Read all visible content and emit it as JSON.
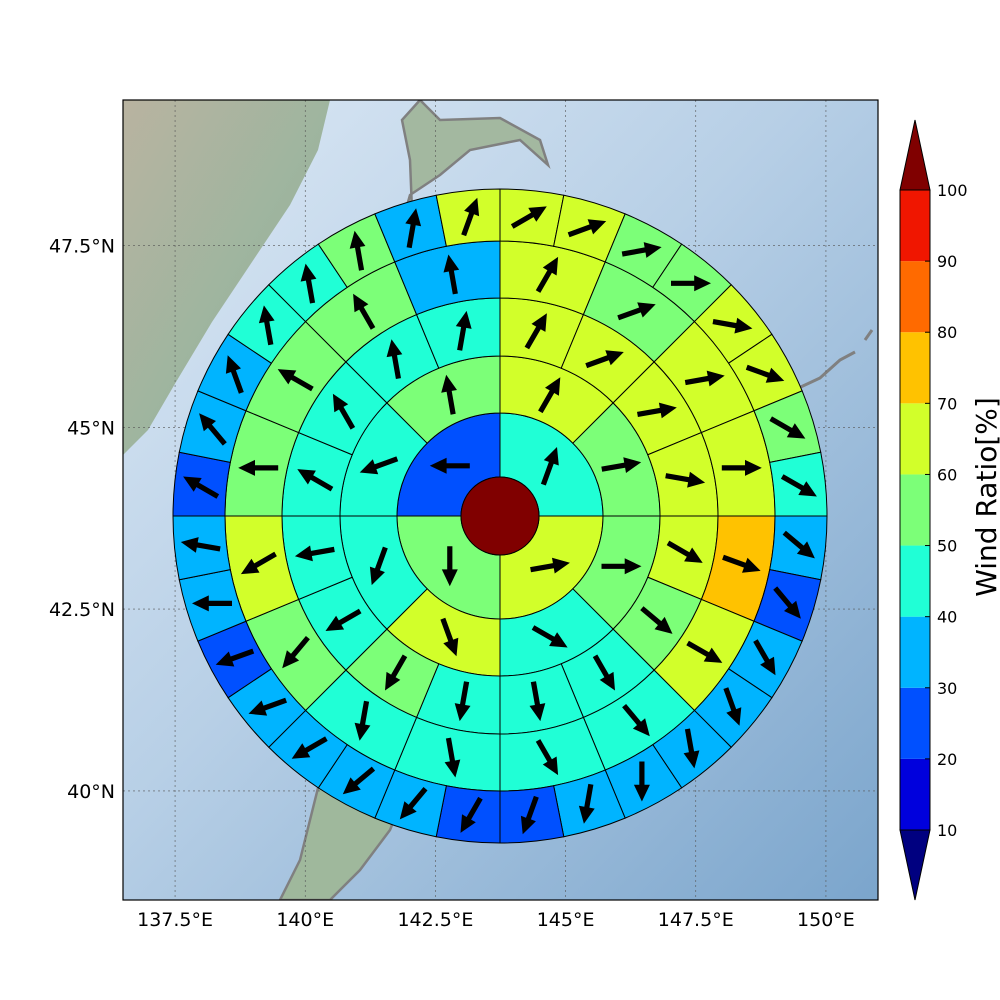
{
  "map": {
    "x_ticks": [
      "137.5°E",
      "140°E",
      "142.5°E",
      "145°E",
      "147.5°E",
      "150°E"
    ],
    "y_ticks": [
      "47.5°N",
      "45°N",
      "42.5°N",
      "40°N"
    ],
    "x_tick_values": [
      137.5,
      140,
      142.5,
      145,
      147.5,
      150
    ],
    "y_tick_values": [
      47.5,
      45,
      42.5,
      40
    ],
    "lon_range": [
      136.5,
      151
    ],
    "lat_range": [
      38.5,
      49.5
    ],
    "gridlines": "dotted",
    "center_value": 100,
    "wind_rose": {
      "ring_sectors": [
        4,
        8,
        16,
        16,
        32
      ],
      "rings": [
        [
          40,
          60,
          50,
          20
        ],
        [
          60,
          50,
          50,
          40,
          60,
          40,
          40,
          50
        ],
        [
          60,
          60,
          60,
          60,
          60,
          50,
          40,
          40,
          40,
          50,
          40,
          40,
          40,
          40,
          40,
          40
        ],
        [
          60,
          50,
          60,
          60,
          70,
          60,
          40,
          40,
          40,
          40,
          50,
          60,
          50,
          50,
          50,
          30
        ],
        [
          60,
          60,
          50,
          50,
          60,
          60,
          50,
          40,
          30,
          20,
          30,
          30,
          30,
          30,
          30,
          20,
          20,
          30,
          30,
          30,
          30,
          20,
          30,
          30,
          20,
          30,
          30,
          40,
          40,
          50,
          30,
          60
        ]
      ],
      "arrows_deg": [
        [
          20,
          80,
          180,
          270
        ],
        [
          30,
          80,
          90,
          120,
          160,
          200,
          250,
          350
        ],
        [
          30,
          70,
          80,
          100,
          120,
          130,
          150,
          170,
          190,
          210,
          240,
          260,
          300,
          330,
          350,
          10
        ],
        [
          30,
          70,
          80,
          90,
          110,
          120,
          140,
          150,
          170,
          190,
          220,
          240,
          270,
          300,
          330,
          350
        ],
        [
          60,
          70,
          80,
          90,
          100,
          110,
          120,
          120,
          130,
          140,
          150,
          160,
          170,
          180,
          190,
          200,
          210,
          220,
          230,
          240,
          250,
          250,
          270,
          280,
          300,
          320,
          340,
          350,
          350,
          350,
          10,
          20
        ]
      ]
    }
  },
  "colorbar": {
    "title": "Wind Ratio[%]",
    "labels": [
      "10",
      "20",
      "30",
      "40",
      "50",
      "60",
      "70",
      "80",
      "90",
      "100"
    ],
    "bins": [
      {
        "lo": 10,
        "hi": 20,
        "color": "#0000dd"
      },
      {
        "lo": 20,
        "hi": 30,
        "color": "#0050ff"
      },
      {
        "lo": 30,
        "hi": 40,
        "color": "#00b4ff"
      },
      {
        "lo": 40,
        "hi": 50,
        "color": "#20ffd6"
      },
      {
        "lo": 50,
        "hi": 60,
        "color": "#7cff78"
      },
      {
        "lo": 60,
        "hi": 70,
        "color": "#d2ff2a"
      },
      {
        "lo": 70,
        "hi": 80,
        "color": "#ffc200"
      },
      {
        "lo": 80,
        "hi": 90,
        "color": "#ff6a00"
      },
      {
        "lo": 90,
        "hi": 100,
        "color": "#f01600"
      }
    ],
    "under_color": "#000080",
    "over_color": "#800000"
  }
}
